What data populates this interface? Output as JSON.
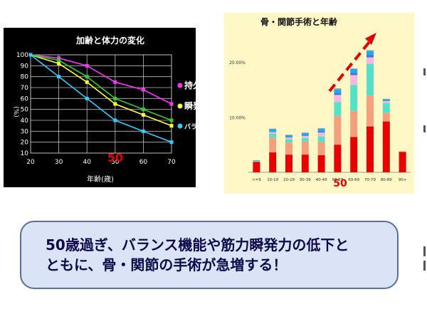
{
  "chart_data": [
    {
      "type": "line",
      "title": "加齢と体力の変化",
      "xlabel": "年齢(歳)",
      "ylabel": "(%)",
      "x": [
        20,
        30,
        40,
        50,
        60,
        70
      ],
      "ylim": [
        10,
        100
      ],
      "yticks": [
        10,
        20,
        30,
        40,
        50,
        60,
        70,
        80,
        90,
        100
      ],
      "grid": true,
      "background": "#000000",
      "highlight_label": "50",
      "series": [
        {
          "name": "持久力",
          "color": "#ff33ff",
          "values": [
            100,
            97,
            90,
            75,
            68,
            55
          ]
        },
        {
          "name": "瞬発力",
          "color": "#ffff33",
          "values": [
            100,
            92,
            75,
            55,
            45,
            35
          ]
        },
        {
          "name": "",
          "color": "#33cc33",
          "values": [
            100,
            95,
            80,
            60,
            50,
            40
          ]
        },
        {
          "name": "バランス",
          "color": "#33ccff",
          "values": [
            100,
            80,
            60,
            40,
            30,
            20
          ]
        }
      ],
      "legend": [
        {
          "label": "持久力",
          "color": "#ff33ff"
        },
        {
          "label": "瞬発力",
          "color": "#ffff33"
        },
        {
          "label": "バランス",
          "color": "#33ccff"
        }
      ]
    },
    {
      "type": "bar",
      "stacked": true,
      "title": "骨・関節手術と年齢",
      "categories": [
        "<=9",
        "10-19",
        "20-29",
        "30-39",
        "40-49",
        "50-59",
        "60-69",
        "70-79",
        "80-89",
        "90+"
      ],
      "ylim": [
        0,
        0.25
      ],
      "yticks": [
        "20.00%",
        "10.00%"
      ],
      "ytick_values": [
        0.2,
        0.1
      ],
      "background": "#fff7c6",
      "highlight_label": "50",
      "highlight_color": "#e00000",
      "segment_colors": [
        "#e80000",
        "#f4a07c",
        "#55e0c8",
        "#f4b8e0",
        "#4b6fd8",
        "#20a8f0",
        "#a0a0a0"
      ],
      "stacks": [
        [
          0.019,
          0.001,
          0.001,
          0.0,
          0.0,
          0.001,
          0.0
        ],
        [
          0.036,
          0.027,
          0.007,
          0.003,
          0.001,
          0.004,
          0.001
        ],
        [
          0.032,
          0.022,
          0.006,
          0.003,
          0.001,
          0.003,
          0.001
        ],
        [
          0.032,
          0.024,
          0.006,
          0.004,
          0.001,
          0.004,
          0.001
        ],
        [
          0.031,
          0.024,
          0.01,
          0.007,
          0.002,
          0.005,
          0.001
        ],
        [
          0.05,
          0.052,
          0.025,
          0.013,
          0.003,
          0.007,
          0.002
        ],
        [
          0.064,
          0.047,
          0.047,
          0.018,
          0.004,
          0.007,
          0.001
        ],
        [
          0.083,
          0.056,
          0.057,
          0.012,
          0.004,
          0.008,
          0.001
        ],
        [
          0.092,
          0.016,
          0.017,
          0.004,
          0.001,
          0.002,
          0.001
        ],
        [
          0.037,
          0.001,
          0.0,
          0.0,
          0.0,
          0.0,
          0.0
        ]
      ]
    }
  ],
  "message": {
    "line1": "50歳過ぎ、バランス機能や筋力瞬発力の低下と",
    "line2": "ともに、骨・関節の手術が急増する！"
  }
}
